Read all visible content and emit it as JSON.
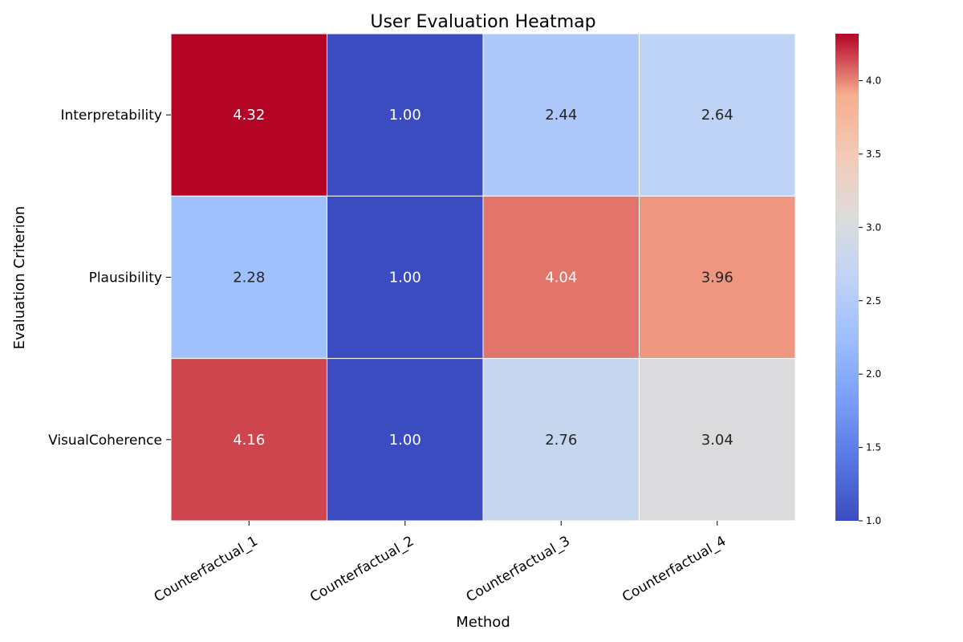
{
  "chart_data": {
    "type": "heatmap",
    "title": "User Evaluation Heatmap",
    "xlabel": "Method",
    "ylabel": "Evaluation Criterion",
    "x_categories": [
      "Counterfactual_1",
      "Counterfactual_2",
      "Counterfactual_3",
      "Counterfactual_4"
    ],
    "y_categories": [
      "Interpretability",
      "Plausibility",
      "VisualCoherence"
    ],
    "values": [
      [
        4.32,
        1.0,
        2.44,
        2.64
      ],
      [
        2.28,
        1.0,
        4.04,
        3.96
      ],
      [
        4.16,
        1.0,
        2.76,
        3.04
      ]
    ],
    "cell_labels": [
      [
        "4.32",
        "1.00",
        "2.44",
        "2.64"
      ],
      [
        "2.28",
        "1.00",
        "4.04",
        "3.96"
      ],
      [
        "4.16",
        "1.00",
        "2.76",
        "3.04"
      ]
    ],
    "colormap": "coolwarm",
    "vmin": 1.0,
    "vmax": 4.32,
    "colorbar_ticks": [
      "1.0",
      "1.5",
      "2.0",
      "2.5",
      "3.0",
      "3.5",
      "4.0"
    ],
    "grid": false
  }
}
